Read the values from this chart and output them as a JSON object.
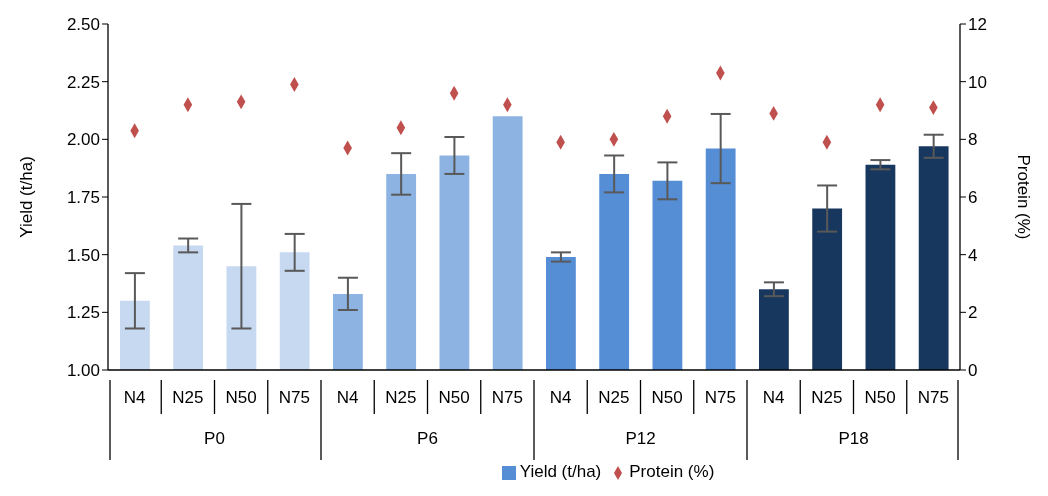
{
  "chart_data": {
    "type": "bar",
    "xlabel": null,
    "ylabel": "Yield (t/ha)",
    "y2label": "Protein (%)",
    "categories": [
      "N4",
      "N25",
      "N50",
      "N75",
      "N4",
      "N25",
      "N50",
      "N75",
      "N4",
      "N25",
      "N50",
      "N75",
      "N4",
      "N25",
      "N50",
      "N75"
    ],
    "annotations": [
      "P0",
      "P6",
      "P12",
      "P18"
    ],
    "series": [
      {
        "name": "Yield (t/ha)",
        "color": "#558ed5",
        "colors": [
          "#c6d9f1",
          "#c6d9f1",
          "#c6d9f1",
          "#c6d9f1",
          "#8db3e2",
          "#8db3e2",
          "#8db3e2",
          "#8db3e2",
          "#558ed5",
          "#558ed5",
          "#558ed5",
          "#558ed5",
          "#17375e",
          "#17375e",
          "#17375e",
          "#17375e"
        ],
        "values": [
          1.3,
          1.54,
          1.45,
          1.51,
          1.33,
          1.85,
          1.93,
          2.1,
          1.49,
          1.85,
          1.82,
          1.96,
          1.35,
          1.7,
          1.89,
          1.97
        ],
        "errors": [
          0.12,
          0.03,
          0.27,
          0.08,
          0.07,
          0.09,
          0.08,
          null,
          0.02,
          0.08,
          0.08,
          0.15,
          0.03,
          0.1,
          0.02,
          0.05
        ]
      },
      {
        "name": "Protein (%)",
        "type": "scatter",
        "axis": "y2",
        "color": "#c0504d",
        "marker": "diamond",
        "values": [
          8.3,
          9.2,
          9.3,
          9.9,
          7.7,
          8.4,
          9.6,
          9.2,
          7.9,
          8.0,
          8.8,
          10.3,
          8.9,
          7.9,
          9.2,
          9.1
        ]
      }
    ],
    "ylim": [
      1,
      2.5
    ],
    "yticks": [
      {
        "value": 1,
        "label": "1.00"
      },
      {
        "value": 1.25,
        "label": "1.25"
      },
      {
        "value": 1.5,
        "label": "1.50"
      },
      {
        "value": 1.75,
        "label": "1.75"
      },
      {
        "value": 2,
        "label": "2.00"
      },
      {
        "value": 2.25,
        "label": "2.25"
      },
      {
        "value": 2.5,
        "label": "2.50"
      }
    ],
    "y2lim": [
      0,
      12
    ],
    "y2ticks": [
      0,
      2,
      4,
      6,
      8,
      10,
      12
    ],
    "grid": false,
    "legend": "bottom"
  }
}
